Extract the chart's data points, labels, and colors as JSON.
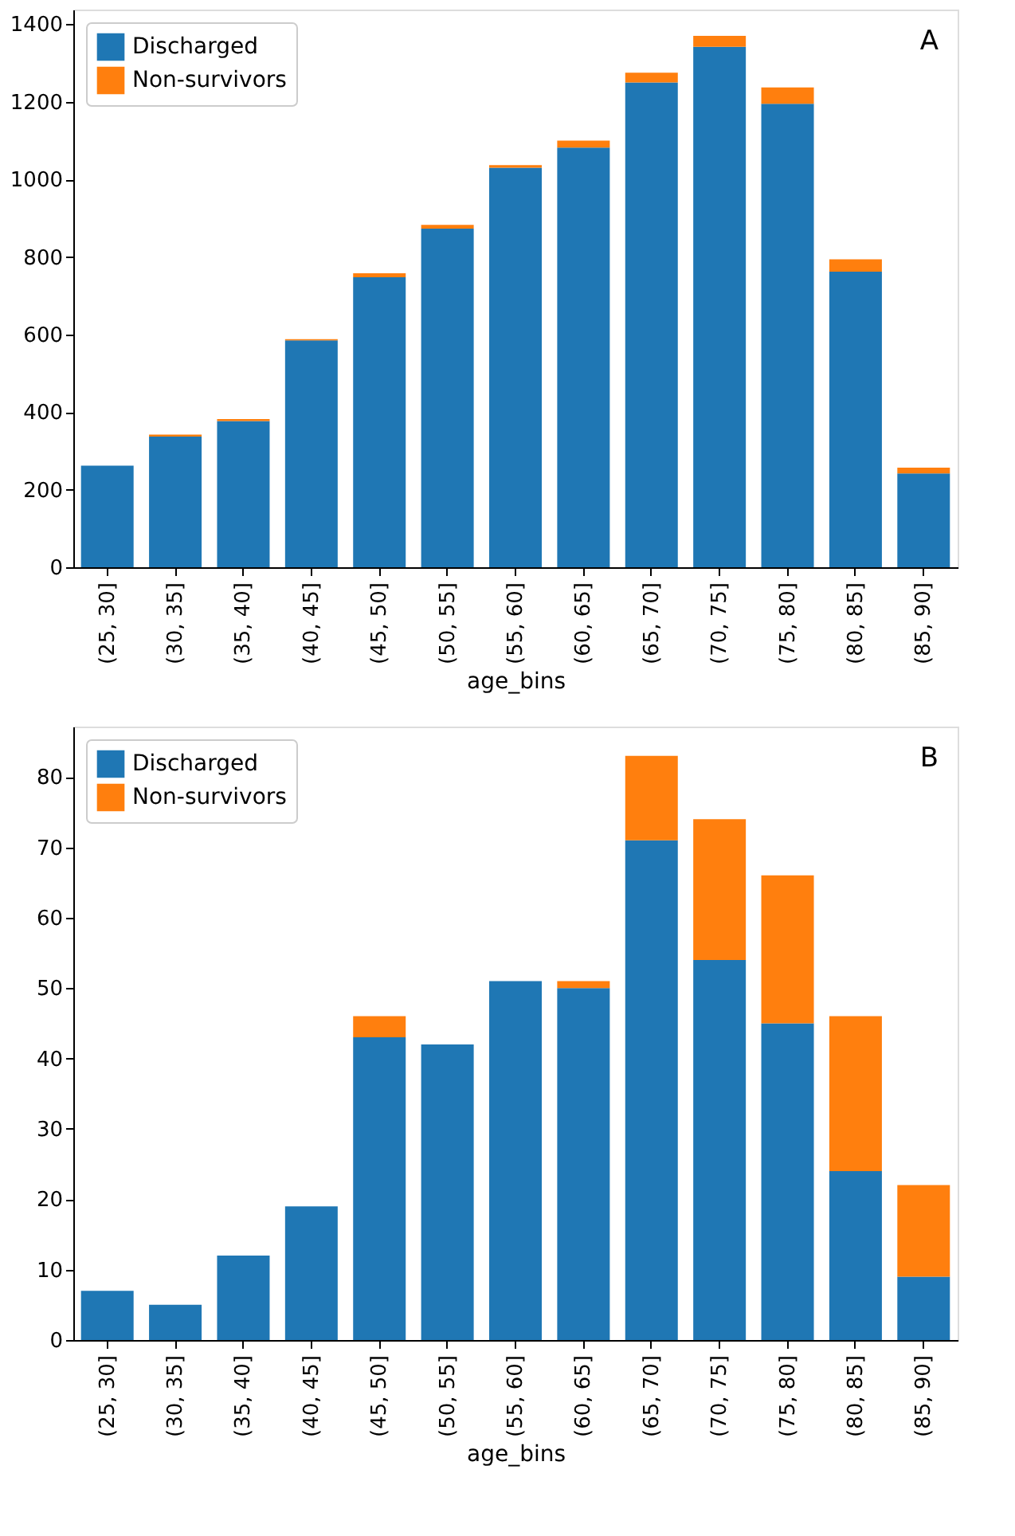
{
  "chart_data": [
    {
      "type": "bar",
      "stacked": true,
      "xlabel": "age_bins",
      "annotations": [
        "A"
      ],
      "legend": "top left",
      "grid": false,
      "categories": [
        "(25, 30]",
        "(30, 35]",
        "(35, 40]",
        "(40, 45]",
        "(45, 50]",
        "(50, 55]",
        "(55, 60]",
        "(60, 65]",
        "(65, 70]",
        "(70, 75]",
        "(75, 80]",
        "(80, 85]",
        "(85, 90]"
      ],
      "series": [
        {
          "name": "Discharged",
          "color": "#1f77b4",
          "values": [
            262,
            337,
            377,
            585,
            748,
            873,
            1030,
            1082,
            1250,
            1342,
            1195,
            762,
            242
          ]
        },
        {
          "name": "Non-survivors",
          "color": "#ff7f0e",
          "values": [
            0,
            5,
            5,
            3,
            10,
            10,
            7,
            18,
            25,
            28,
            42,
            32,
            15
          ]
        }
      ],
      "ylim": [
        0,
        1438
      ],
      "yticks": [
        0,
        200,
        400,
        600,
        800,
        1000,
        1200,
        1400
      ]
    },
    {
      "type": "bar",
      "stacked": true,
      "xlabel": "age_bins",
      "annotations": [
        "B"
      ],
      "legend": "top left",
      "grid": false,
      "categories": [
        "(25, 30]",
        "(30, 35]",
        "(35, 40]",
        "(40, 45]",
        "(45, 50]",
        "(50, 55]",
        "(55, 60]",
        "(60, 65]",
        "(65, 70]",
        "(70, 75]",
        "(75, 80]",
        "(80, 85]",
        "(85, 90]"
      ],
      "series": [
        {
          "name": "Discharged",
          "color": "#1f77b4",
          "values": [
            7,
            5,
            12,
            19,
            43,
            42,
            51,
            50,
            71,
            54,
            45,
            24,
            9
          ]
        },
        {
          "name": "Non-survivors",
          "color": "#ff7f0e",
          "values": [
            0,
            0,
            0,
            0,
            3,
            0,
            0,
            1,
            12,
            20,
            21,
            22,
            13
          ]
        }
      ],
      "ylim": [
        0,
        87.15
      ],
      "yticks": [
        0,
        10,
        20,
        30,
        40,
        50,
        60,
        70,
        80
      ]
    }
  ]
}
